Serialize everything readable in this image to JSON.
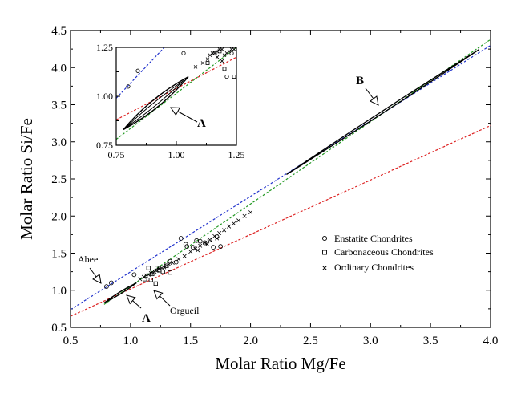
{
  "chart_data": [
    {
      "type": "scatter",
      "xlabel": "Molar Ratio Mg/Fe",
      "ylabel": "Molar Ratio Si/Fe",
      "xlim": [
        0.5,
        4.0
      ],
      "ylim": [
        0.5,
        4.5
      ],
      "xticks": [
        "0.5",
        "1.0",
        "1.5",
        "2.0",
        "2.5",
        "3.0",
        "3.5",
        "4.0"
      ],
      "yticks": [
        "0.5",
        "1.0",
        "1.5",
        "2.0",
        "2.5",
        "3.0",
        "3.5",
        "4.0",
        "4.5"
      ],
      "grid": false,
      "legend_position": "lower-right",
      "colors": {
        "blue": "#2233cc",
        "green": "#229922",
        "red": "#dd2222",
        "black": "#000000"
      },
      "lines": [
        {
          "color": "blue",
          "style": "dashed",
          "x": [
            0.5,
            4.0
          ],
          "y": [
            0.74,
            4.3
          ]
        },
        {
          "color": "green",
          "style": "dashed",
          "x": [
            0.78,
            4.0
          ],
          "y": [
            0.81,
            4.38
          ]
        },
        {
          "color": "red",
          "style": "dashed",
          "x": [
            0.5,
            4.0
          ],
          "y": [
            0.65,
            3.22
          ]
        }
      ],
      "envelopes": [
        {
          "label": "A",
          "x": [
            0.78,
            1.05
          ],
          "y": [
            0.83,
            1.1
          ]
        },
        {
          "label": "B",
          "x": [
            2.3,
            3.9
          ],
          "y": [
            2.56,
            4.24
          ]
        }
      ],
      "series": [
        {
          "name": "Enstatite Chondrites",
          "marker": "circle",
          "x": [
            0.8,
            0.84,
            1.03,
            1.23,
            1.38,
            1.42,
            1.46,
            1.52,
            1.55,
            1.58,
            1.62,
            1.66,
            1.69,
            1.72,
            1.75,
            1.33,
            1.47
          ],
          "y": [
            1.05,
            1.1,
            1.21,
            1.27,
            1.38,
            1.7,
            1.62,
            1.58,
            1.67,
            1.66,
            1.64,
            1.68,
            1.58,
            1.72,
            1.59,
            1.39,
            1.59
          ]
        },
        {
          "name": "Carbonaceous Chondrites",
          "marker": "square",
          "x": [
            1.12,
            1.15,
            1.18,
            1.21,
            1.24,
            1.27,
            1.3,
            1.33,
            1.22,
            1.17
          ],
          "y": [
            1.15,
            1.3,
            1.22,
            1.09,
            1.27,
            1.25,
            1.33,
            1.24,
            1.3,
            1.14
          ]
        },
        {
          "name": "Ordinary Chondrites",
          "marker": "x",
          "x": [
            1.08,
            1.11,
            1.13,
            1.15,
            1.17,
            1.18,
            1.2,
            1.22,
            1.24,
            1.26,
            1.28,
            1.3,
            1.32,
            1.35,
            1.4,
            1.45,
            1.5,
            1.54,
            1.58,
            1.62,
            1.66,
            1.7,
            1.74,
            1.78,
            1.82,
            1.86,
            1.9,
            1.95,
            2.0,
            1.56,
            1.64,
            1.72
          ],
          "y": [
            1.15,
            1.18,
            1.2,
            1.21,
            1.23,
            1.24,
            1.25,
            1.27,
            1.29,
            1.3,
            1.31,
            1.33,
            1.35,
            1.37,
            1.42,
            1.46,
            1.52,
            1.56,
            1.6,
            1.64,
            1.68,
            1.73,
            1.77,
            1.81,
            1.86,
            1.9,
            1.94,
            2.0,
            2.05,
            1.54,
            1.62,
            1.7
          ]
        }
      ],
      "annotations": [
        {
          "text": "Abee",
          "x": 0.8,
          "y": 1.05,
          "bold": false
        },
        {
          "text": "Orgueil",
          "x": 1.21,
          "y": 1.03,
          "bold": false
        },
        {
          "text": "A",
          "x": 0.94,
          "y": 0.94,
          "bold": true
        },
        {
          "text": "B",
          "x": 3.08,
          "y": 3.39,
          "bold": true
        }
      ]
    },
    {
      "type": "scatter",
      "xlim": [
        0.75,
        1.25
      ],
      "ylim": [
        0.75,
        1.25
      ],
      "xticks": [
        "0.75",
        "1.00",
        "1.25"
      ],
      "yticks": [
        "0.75",
        "1.00",
        "1.25"
      ],
      "lines": [
        {
          "color": "blue",
          "style": "dashed",
          "x": [
            0.75,
            0.95
          ],
          "y": [
            0.99,
            1.25
          ]
        },
        {
          "color": "green",
          "style": "dashed",
          "x": [
            0.75,
            1.25
          ],
          "y": [
            0.78,
            1.25
          ]
        },
        {
          "color": "red",
          "style": "dashed",
          "x": [
            0.75,
            1.25
          ],
          "y": [
            0.88,
            1.2
          ]
        }
      ],
      "series": [
        {
          "name": "Enstatite Chondrites",
          "marker": "circle",
          "x": [
            0.8,
            0.84,
            1.03,
            1.23,
            1.21
          ],
          "y": [
            1.05,
            1.13,
            1.22,
            1.22,
            1.1
          ]
        },
        {
          "name": "Carbonaceous Chondrites",
          "marker": "square",
          "x": [
            1.13,
            1.16,
            1.2,
            1.24,
            1.18
          ],
          "y": [
            1.17,
            1.22,
            1.14,
            1.1,
            1.23
          ]
        },
        {
          "name": "Ordinary Chondrites",
          "marker": "x",
          "x": [
            1.08,
            1.11,
            1.13,
            1.14,
            1.15,
            1.16,
            1.17,
            1.18,
            1.19,
            1.2,
            1.21,
            1.22,
            1.23,
            1.24,
            1.17,
            1.19
          ],
          "y": [
            1.15,
            1.17,
            1.19,
            1.21,
            1.22,
            1.22,
            1.23,
            1.24,
            1.24,
            1.21,
            1.22,
            1.23,
            1.24,
            1.24,
            1.2,
            1.18
          ]
        }
      ],
      "annotations": [
        {
          "text": "A",
          "x": 1.02,
          "y": 0.88,
          "bold": true
        }
      ]
    }
  ]
}
